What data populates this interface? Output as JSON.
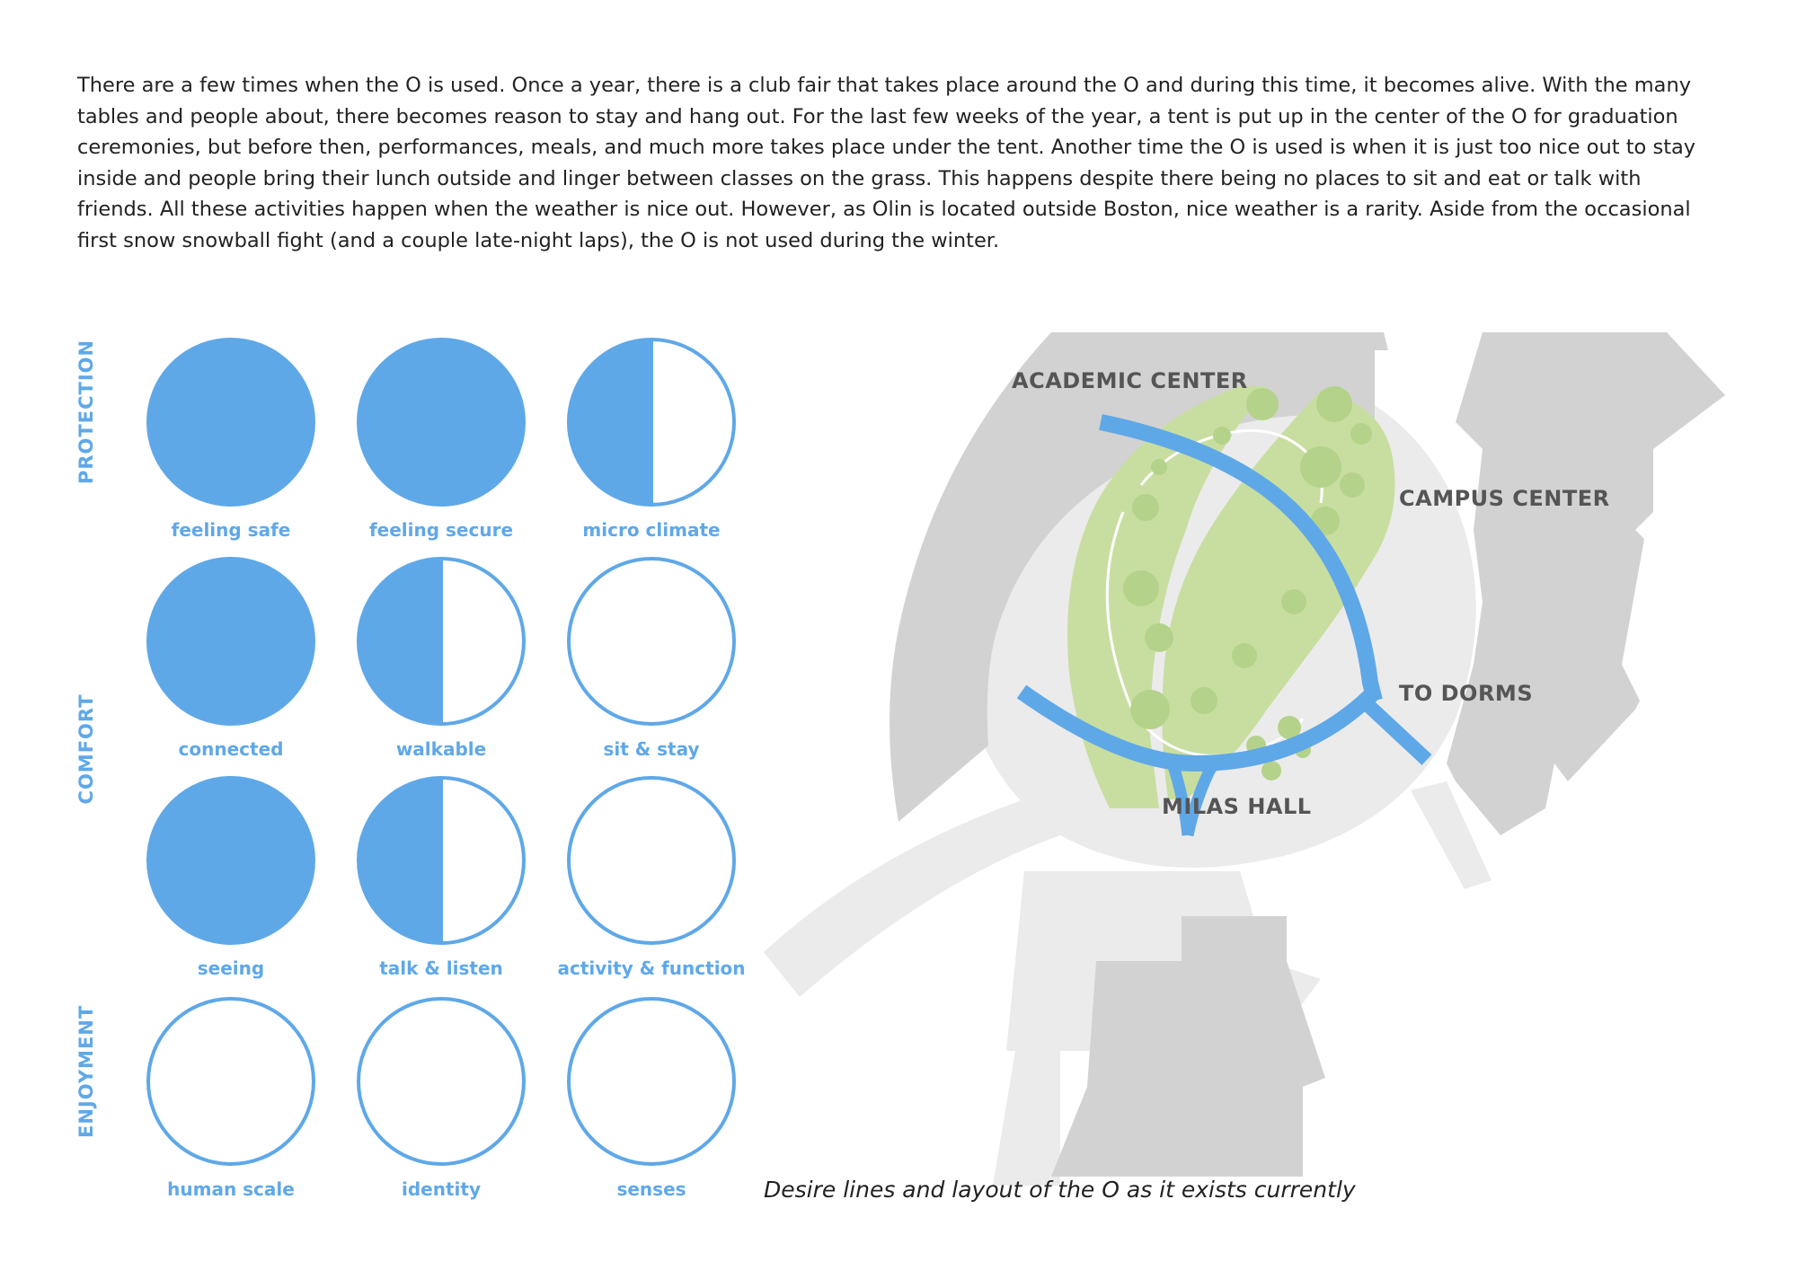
{
  "intro_text": "There are a few times when the O is used. Once a year, there is a club fair that takes place around the O and during this time, it becomes alive. With the many tables and people about, there becomes reason to stay and hang out. For the last few weeks of the year, a tent is put up in the center of the O for graduation ceremonies, but before then, performances, meals, and much more takes place under the tent. Another time the O is used is when it is just too nice out to stay inside and people bring their lunch outside and linger between classes on the grass. This happens despite there being no places to sit and eat or talk with friends. All these activities happen when the weather is nice out. However, as Olin is located outside Boston, nice weather is a rarity. Aside from the occasional first snow snowball fight (and a couple late-night laps), the O is not used during the winter.",
  "categories": {
    "protection": "PROTECTION",
    "comfort": "COMFORT",
    "enjoyment": "ENJOYMENT"
  },
  "metrics": [
    {
      "label": "feeling safe",
      "fill": 1
    },
    {
      "label": "feeling secure",
      "fill": 1
    },
    {
      "label": "micro climate",
      "fill": 0.5
    },
    {
      "label": "connected",
      "fill": 1
    },
    {
      "label": "walkable",
      "fill": 0.5
    },
    {
      "label": "sit & stay",
      "fill": 0
    },
    {
      "label": "seeing",
      "fill": 1
    },
    {
      "label": "talk & listen",
      "fill": 0.5
    },
    {
      "label": "activity & function",
      "fill": 0
    },
    {
      "label": "human scale",
      "fill": 0
    },
    {
      "label": "identity",
      "fill": 0
    },
    {
      "label": "senses",
      "fill": 0
    }
  ],
  "map": {
    "academic_center": "ACADEMIC CENTER",
    "campus_center": "CAMPUS CENTER",
    "to_dorms": "TO DORMS",
    "milas_hall": "MILAS HALL"
  },
  "caption": "Desire lines and layout of the O as it exists currently",
  "colors": {
    "accent_blue": "#5fa8e8",
    "building_gray": "#d2d2d2",
    "paving_gray": "#ebebeb",
    "lawn_green": "#c8dea0",
    "tree_green": "#b4d28a"
  }
}
